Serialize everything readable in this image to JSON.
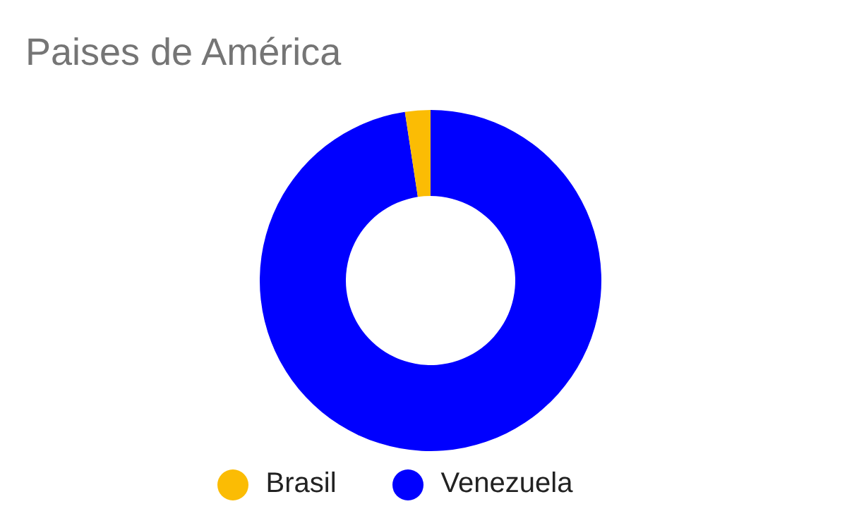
{
  "chart_data": {
    "type": "donut",
    "title": "Paises de América",
    "categories": [
      "Venezuela",
      "Brasil"
    ],
    "values": [
      97.6,
      2.4
    ],
    "colors": [
      "#0000ff",
      "#fbbc04"
    ],
    "legend": "bottom"
  }
}
